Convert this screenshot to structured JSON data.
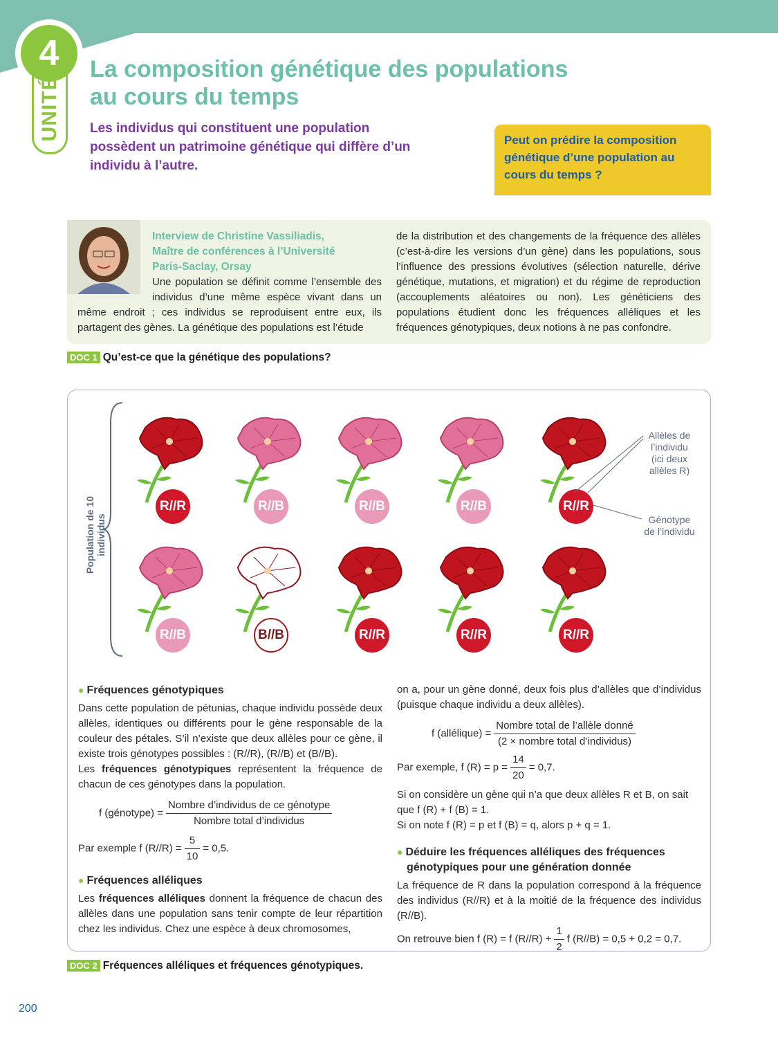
{
  "unit": {
    "label": "UNITÉ",
    "number": "4"
  },
  "title": [
    "La composition génétique des populations",
    "au cours du temps"
  ],
  "subtitle": "Les individus qui constituent une population possèdent un patrimoine génétique qui diffère d’un individu à l’autre.",
  "question": "Peut on prédire la composition génétique d’une population au cours du temps ?",
  "interview": {
    "heading": [
      "Interview de Christine Vassiliadis,",
      "Maître de conférences à l’Université",
      "Paris-Saclay, Orsay"
    ],
    "p1": "Une population se définit comme l’ensemble des individus d’une même espèce vivant dans",
    "p2": "un même endroit ; ces individus se reproduisent entre eux, ils partagent des gènes. La génétique des populations est l’étude",
    "col2": "de la distribution et des changements de la fréquence des allèles (c’est-à-dire les versions d’un gène) dans les populations, sous l’influence des pressions évolutives (sélection naturelle, dérive génétique, mutations, et migration) et du régime de reproduction (accouplements aléatoires ou non). Les généticiens des populations étudient donc les fréquences alléliques et les fréquences génotypiques, deux notions à ne pas confondre."
  },
  "doc1": {
    "label": "DOC 1",
    "title": "Qu’est-ce que la génétique des populations?"
  },
  "figure": {
    "population_label": "Population de 10 individus",
    "individuals": [
      {
        "genotype": "R//R",
        "color": "red"
      },
      {
        "genotype": "R//B",
        "color": "pink"
      },
      {
        "genotype": "R//B",
        "color": "pink"
      },
      {
        "genotype": "R//B",
        "color": "pink"
      },
      {
        "genotype": "R//R",
        "color": "red"
      },
      {
        "genotype": "R//B",
        "color": "pink"
      },
      {
        "genotype": "B//B",
        "color": "white"
      },
      {
        "genotype": "R//R",
        "color": "red"
      },
      {
        "genotype": "R//R",
        "color": "red"
      },
      {
        "genotype": "R//R",
        "color": "red"
      }
    ],
    "annotation_alleles": [
      "Allèles de",
      "l’individu",
      "(ici deux",
      "allèles R)"
    ],
    "annotation_genotype": [
      "Génotype",
      "de l’individu"
    ],
    "colors": {
      "red": "#c0141f",
      "pink": "#e0709a",
      "white": "#ffffff"
    }
  },
  "left": {
    "h1": "Fréquences génotypiques",
    "p1": "Dans cette population de pétunias, chaque individu possède deux allèles, identiques ou différents pour le gène responsable de la couleur des pétales. S’il n’existe que deux allèles pour ce gène, il existe trois génotypes possibles : (R//R), (R//B) et (B//B).",
    "p1b_pre": "Les ",
    "p1b_bold": "fréquences génotypiques",
    "p1b_post": " représentent la fréquence de chacun de ces génotypes dans la population.",
    "f1_lhs": "f (génotype) =",
    "f1_num": "Nombre d’individus de ce génotype",
    "f1_den": "Nombre total d’individus",
    "ex1_pre": "Par exemple f (R//R) =",
    "ex1_num": "5",
    "ex1_den": "10",
    "ex1_post": "= 0,5.",
    "h2": "Fréquences alléliques",
    "p2_pre": "Les ",
    "p2_bold": "fréquences alléliques",
    "p2_post": " donnent la fréquence de chacun des allèles dans une population sans tenir compte de leur répartition chez les individus. Chez une espèce à deux chromosomes,"
  },
  "right": {
    "p1": "on a, pour un gène donné, deux fois plus d’allèles que d’individus (puisque chaque individu a deux allèles).",
    "f2_lhs": "f (allélique) =",
    "f2_num": "Nombre total de l’allèle donné",
    "f2_den": "(2 × nombre total d’individus)",
    "ex2_pre": "Par exemple, f (R) = p =",
    "ex2_num": "14",
    "ex2_den": "20",
    "ex2_post": "= 0,7.",
    "p2": "Si on considère un gène qui n’a que deux allèles R et B, on sait que f (R) + f (B) = 1.",
    "p3": "Si on note f (R) = p et f (B) = q, alors p + q = 1.",
    "h3": "Déduire les fréquences alléliques des fréquences génotypiques pour une génération donnée",
    "p4": "La fréquence de R dans la population correspond à la fréquence des individus (R//R) et à la moitié de la fréquence des individus (R//B).",
    "p5_pre": "On retrouve bien f (R) = f (R//R) +",
    "p5_num": "1",
    "p5_den": "2",
    "p5_post": "f (R//B) = 0,5 + 0,2 = 0,7."
  },
  "doc2": {
    "label": "DOC 2",
    "title": "Fréquences alléliques et fréquences génotypiques."
  },
  "page_number": "200"
}
